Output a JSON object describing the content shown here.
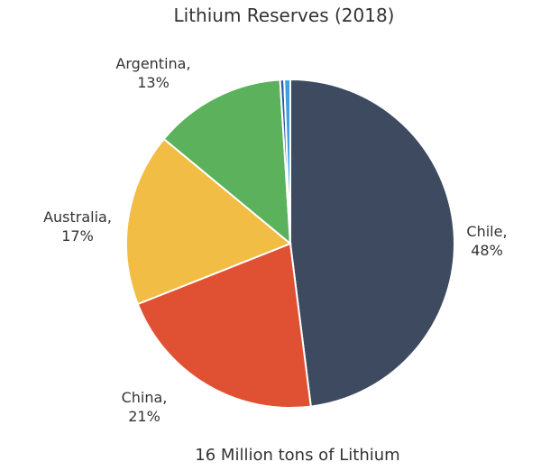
{
  "chart_data": {
    "type": "pie",
    "title": "Lithium Reserves (2018)",
    "subtitle": "16 Million tons of Lithium",
    "categories": [
      "Chile,",
      "China,",
      "Australia,",
      "Argentina,",
      null,
      null
    ],
    "values": [
      48,
      21,
      17,
      13,
      0.4,
      0.6
    ],
    "value_labels": [
      "48%",
      "21%",
      "17%",
      "13%",
      null,
      null
    ],
    "colors": [
      "#3d4a5f",
      "#e05133",
      "#f2bd45",
      "#5cb25c",
      "#2e5aa8",
      "#3fa0e0"
    ]
  }
}
